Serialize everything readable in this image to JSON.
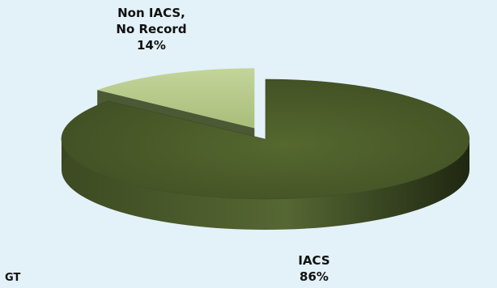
{
  "header": {
    "title_fragment": ""
  },
  "footer": {
    "corner_text": "GT"
  },
  "chart_data": {
    "type": "pie",
    "title": "",
    "three_d": true,
    "legend": "none",
    "colors": {
      "IACS": "#4a5a2a",
      "Non IACS, No Record": "#b8cc8c"
    },
    "slices": [
      {
        "label_line1": "IACS",
        "label_line2": "",
        "percent_text": "86%",
        "value": 86,
        "exploded": false
      },
      {
        "label_line1": "Non IACS,",
        "label_line2": "No Record",
        "percent_text": "14%",
        "value": 14,
        "exploded": true
      }
    ]
  }
}
